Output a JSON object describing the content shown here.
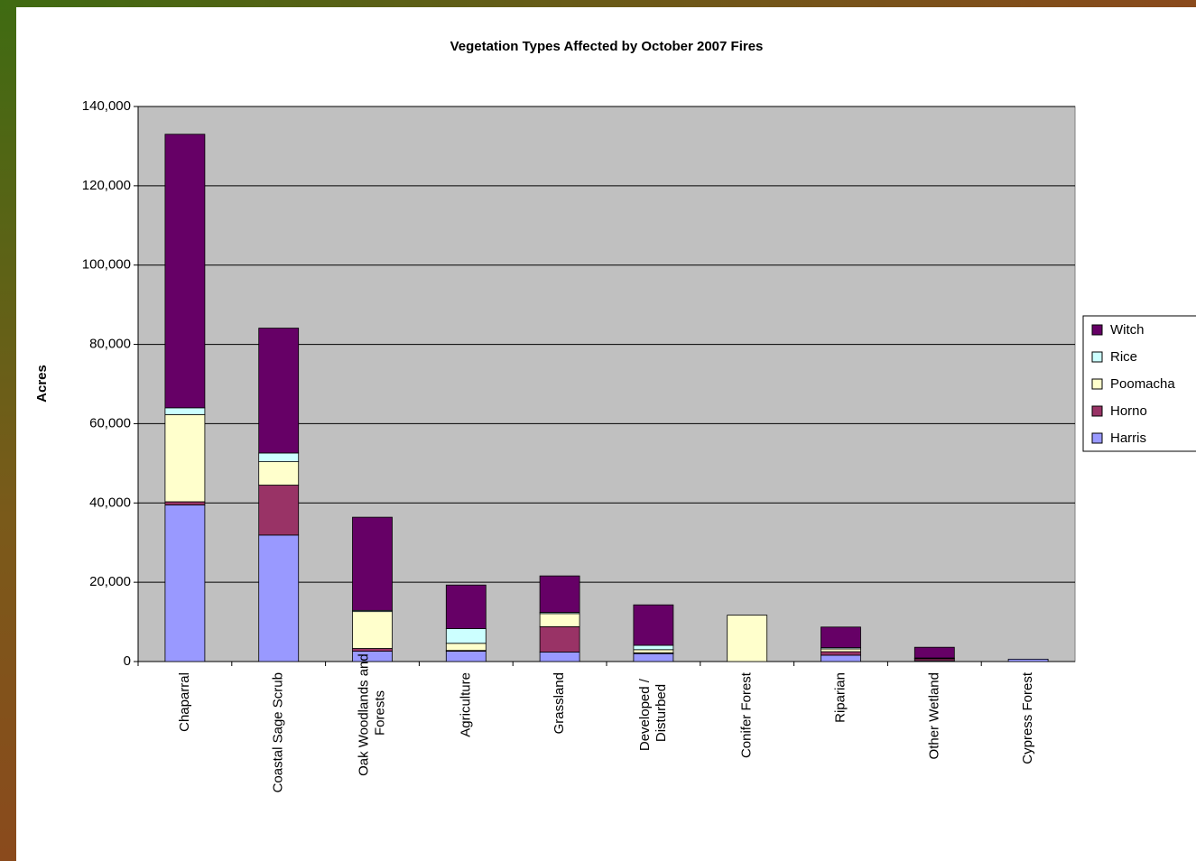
{
  "chart_data": {
    "type": "stacked_bar",
    "title": "Vegetation Types Affected by October 2007 Fires",
    "y_label": "Acres",
    "categories": [
      "Chaparral",
      "Coastal Sage Scrub",
      "Oak Woodlands and Forests",
      "Agriculture",
      "Grassland",
      "Developed / Disturbed",
      "Conifer Forest",
      "Riparian",
      "Other Wetland",
      "Cypress Forest"
    ],
    "series": [
      {
        "name": "Harris",
        "color": "#9999ff",
        "values": [
          39500,
          31900,
          2600,
          2600,
          2400,
          2000,
          0,
          1600,
          200,
          600
        ]
      },
      {
        "name": "Horno",
        "color": "#993366",
        "values": [
          800,
          12600,
          700,
          200,
          6400,
          200,
          0,
          900,
          500,
          0
        ]
      },
      {
        "name": "Poomacha",
        "color": "#ffffcc",
        "values": [
          22000,
          5900,
          9300,
          1800,
          3300,
          800,
          11700,
          700,
          100,
          0
        ]
      },
      {
        "name": "Rice",
        "color": "#ccffff",
        "values": [
          1700,
          2200,
          300,
          3700,
          300,
          1100,
          0,
          300,
          100,
          0
        ]
      },
      {
        "name": "Witch",
        "color": "#660066",
        "values": [
          69000,
          31500,
          23500,
          11000,
          9200,
          10200,
          0,
          5200,
          2700,
          0
        ]
      }
    ],
    "ylim": [
      0,
      140000
    ],
    "yticks": [
      0,
      {
        "value": 20000,
        "label": "20,000"
      },
      {
        "value": 40000,
        "label": "40,000"
      },
      {
        "value": 60000,
        "label": "60,000"
      },
      {
        "value": 80000,
        "label": "80,000"
      },
      {
        "value": 100000,
        "label": "100,000"
      },
      {
        "value": 120000,
        "label": "120,000"
      },
      {
        "value": 140000,
        "label": "140,000"
      }
    ],
    "grid": true,
    "legend": "right"
  }
}
